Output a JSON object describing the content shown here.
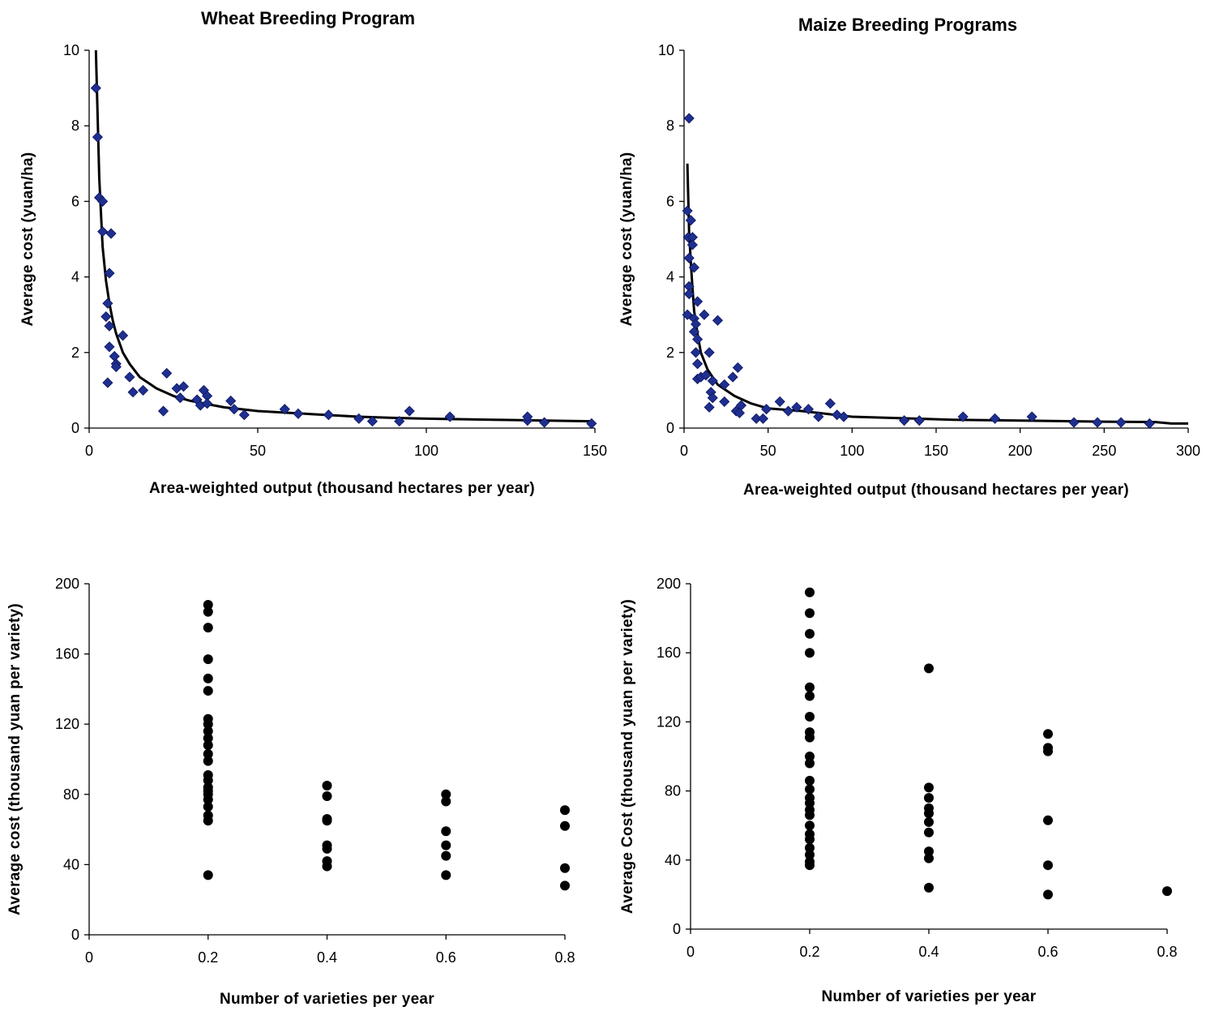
{
  "chart_data": [
    {
      "type": "scatter",
      "title": "Wheat Breeding Program",
      "xlabel": "Area-weighted output (thousand hectares per year)",
      "ylabel": "Average cost (yuan/ha)",
      "xlim": [
        0,
        150
      ],
      "ylim": [
        0,
        10
      ],
      "xticks": [
        0,
        50,
        100,
        150
      ],
      "yticks": [
        0,
        2,
        4,
        6,
        8,
        10
      ],
      "grid": false,
      "legend": "none",
      "marker": "diamond",
      "marker_color": "#1f2f8f",
      "series": [
        {
          "values": [
            [
              2,
              9.0
            ],
            [
              2.5,
              7.7
            ],
            [
              3,
              6.1
            ],
            [
              4,
              6.0
            ],
            [
              4,
              5.2
            ],
            [
              6.5,
              5.15
            ],
            [
              6,
              4.1
            ],
            [
              5,
              2.95
            ],
            [
              5.5,
              3.3
            ],
            [
              6,
              2.7
            ],
            [
              6,
              2.15
            ],
            [
              7.5,
              1.9
            ],
            [
              8,
              1.7
            ],
            [
              8,
              1.62
            ],
            [
              5.5,
              1.2
            ],
            [
              10,
              2.45
            ],
            [
              12,
              1.35
            ],
            [
              13,
              0.95
            ],
            [
              16,
              1.0
            ],
            [
              22,
              0.45
            ],
            [
              23,
              1.45
            ],
            [
              26,
              1.05
            ],
            [
              27,
              0.8
            ],
            [
              28,
              1.1
            ],
            [
              32,
              0.75
            ],
            [
              33,
              0.6
            ],
            [
              34,
              1.0
            ],
            [
              35,
              0.85
            ],
            [
              35,
              0.65
            ],
            [
              42,
              0.72
            ],
            [
              43,
              0.5
            ],
            [
              46,
              0.35
            ],
            [
              58,
              0.5
            ],
            [
              62,
              0.38
            ],
            [
              71,
              0.35
            ],
            [
              80,
              0.25
            ],
            [
              84,
              0.18
            ],
            [
              92,
              0.18
            ],
            [
              95,
              0.45
            ],
            [
              107,
              0.3
            ],
            [
              130,
              0.2
            ],
            [
              130,
              0.3
            ],
            [
              135,
              0.15
            ],
            [
              149,
              0.12
            ]
          ]
        }
      ],
      "trendline": [
        [
          2,
          10.0
        ],
        [
          3,
          6.6
        ],
        [
          4,
          4.8
        ],
        [
          5,
          3.9
        ],
        [
          6,
          3.3
        ],
        [
          7,
          2.85
        ],
        [
          8,
          2.5
        ],
        [
          10,
          2.0
        ],
        [
          12,
          1.7
        ],
        [
          15,
          1.35
        ],
        [
          20,
          1.05
        ],
        [
          25,
          0.85
        ],
        [
          30,
          0.72
        ],
        [
          40,
          0.55
        ],
        [
          50,
          0.45
        ],
        [
          60,
          0.4
        ],
        [
          70,
          0.35
        ],
        [
          80,
          0.3
        ],
        [
          90,
          0.27
        ],
        [
          100,
          0.25
        ],
        [
          120,
          0.22
        ],
        [
          149,
          0.18
        ]
      ]
    },
    {
      "type": "scatter",
      "title": "Maize Breeding Programs",
      "xlabel": "Area-weighted output (thousand hectares per year)",
      "ylabel": "Average cost (yuan/ha)",
      "xlim": [
        0,
        300
      ],
      "ylim": [
        0,
        10
      ],
      "xticks": [
        0,
        50,
        100,
        150,
        200,
        250,
        300
      ],
      "yticks": [
        0,
        2,
        4,
        6,
        8,
        10
      ],
      "grid": false,
      "legend": "none",
      "marker": "diamond",
      "marker_color": "#1f2f8f",
      "series": [
        {
          "values": [
            [
              3,
              8.2
            ],
            [
              2,
              5.75
            ],
            [
              4,
              5.5
            ],
            [
              2.5,
              5.05
            ],
            [
              5,
              5.05
            ],
            [
              3,
              4.5
            ],
            [
              5,
              4.85
            ],
            [
              6,
              4.25
            ],
            [
              3,
              3.75
            ],
            [
              3,
              3.55
            ],
            [
              2,
              3.0
            ],
            [
              8,
              3.35
            ],
            [
              6,
              2.9
            ],
            [
              7,
              2.75
            ],
            [
              6,
              2.55
            ],
            [
              8,
              2.35
            ],
            [
              7,
              2.0
            ],
            [
              8,
              1.7
            ],
            [
              12,
              3.0
            ],
            [
              20,
              2.85
            ],
            [
              15,
              2.0
            ],
            [
              8,
              1.3
            ],
            [
              10,
              1.35
            ],
            [
              13,
              1.4
            ],
            [
              17,
              1.25
            ],
            [
              16,
              0.95
            ],
            [
              17,
              0.8
            ],
            [
              15,
              0.55
            ],
            [
              24,
              1.15
            ],
            [
              29,
              1.35
            ],
            [
              32,
              1.6
            ],
            [
              24,
              0.7
            ],
            [
              31,
              0.45
            ],
            [
              33,
              0.4
            ],
            [
              34,
              0.6
            ],
            [
              43,
              0.25
            ],
            [
              47,
              0.25
            ],
            [
              49,
              0.5
            ],
            [
              57,
              0.7
            ],
            [
              62,
              0.45
            ],
            [
              67,
              0.55
            ],
            [
              74,
              0.5
            ],
            [
              80,
              0.3
            ],
            [
              87,
              0.65
            ],
            [
              91,
              0.35
            ],
            [
              95,
              0.3
            ],
            [
              131,
              0.2
            ],
            [
              140,
              0.2
            ],
            [
              166,
              0.3
            ],
            [
              185,
              0.25
            ],
            [
              207,
              0.3
            ],
            [
              232,
              0.15
            ],
            [
              246,
              0.15
            ],
            [
              260,
              0.15
            ],
            [
              277,
              0.12
            ]
          ]
        }
      ],
      "trendline": [
        [
          2,
          7.0
        ],
        [
          3,
          5.2
        ],
        [
          4,
          4.4
        ],
        [
          5,
          3.7
        ],
        [
          6,
          3.1
        ],
        [
          8,
          2.5
        ],
        [
          10,
          2.0
        ],
        [
          14,
          1.55
        ],
        [
          20,
          1.15
        ],
        [
          30,
          0.85
        ],
        [
          40,
          0.65
        ],
        [
          50,
          0.52
        ],
        [
          70,
          0.45
        ],
        [
          90,
          0.35
        ],
        [
          100,
          0.3
        ],
        [
          130,
          0.26
        ],
        [
          160,
          0.22
        ],
        [
          200,
          0.2
        ],
        [
          250,
          0.17
        ],
        [
          280,
          0.16
        ],
        [
          290,
          0.12
        ],
        [
          300,
          0.12
        ]
      ]
    },
    {
      "type": "scatter",
      "title": "",
      "xlabel": "Number of varieties per year",
      "ylabel": "Average cost (thousand yuan per variety)",
      "xlim": [
        0,
        0.8
      ],
      "ylim": [
        0,
        200
      ],
      "xticks": [
        0,
        0.2,
        0.4,
        0.6,
        0.8
      ],
      "yticks": [
        0,
        40,
        80,
        120,
        160,
        200
      ],
      "grid": false,
      "legend": "none",
      "marker": "circle",
      "marker_color": "#000000",
      "series": [
        {
          "values": [
            [
              0.2,
              188
            ],
            [
              0.2,
              184
            ],
            [
              0.2,
              175
            ],
            [
              0.2,
              157
            ],
            [
              0.2,
              146
            ],
            [
              0.2,
              139
            ],
            [
              0.2,
              123
            ],
            [
              0.2,
              120
            ],
            [
              0.2,
              116
            ],
            [
              0.2,
              112
            ],
            [
              0.2,
              108
            ],
            [
              0.2,
              103
            ],
            [
              0.2,
              99
            ],
            [
              0.2,
              91
            ],
            [
              0.2,
              88
            ],
            [
              0.2,
              84
            ],
            [
              0.2,
              82
            ],
            [
              0.2,
              80
            ],
            [
              0.2,
              77
            ],
            [
              0.2,
              73
            ],
            [
              0.2,
              68
            ],
            [
              0.2,
              65
            ],
            [
              0.2,
              34
            ],
            [
              0.4,
              85
            ],
            [
              0.4,
              79
            ],
            [
              0.4,
              66
            ],
            [
              0.4,
              65
            ],
            [
              0.4,
              51
            ],
            [
              0.4,
              49
            ],
            [
              0.4,
              42
            ],
            [
              0.4,
              39
            ],
            [
              0.6,
              80
            ],
            [
              0.6,
              76
            ],
            [
              0.6,
              59
            ],
            [
              0.6,
              51
            ],
            [
              0.6,
              45
            ],
            [
              0.6,
              34
            ],
            [
              0.8,
              71
            ],
            [
              0.8,
              62
            ],
            [
              0.8,
              38
            ],
            [
              0.8,
              28
            ]
          ]
        }
      ]
    },
    {
      "type": "scatter",
      "title": "",
      "xlabel": "Number of varieties per year",
      "ylabel": "Average Cost (thousand yuan per variety)",
      "xlim": [
        0,
        0.8
      ],
      "ylim": [
        0,
        200
      ],
      "xticks": [
        0,
        0.2,
        0.4,
        0.6,
        0.8
      ],
      "yticks": [
        0,
        40,
        80,
        120,
        160,
        200
      ],
      "grid": false,
      "legend": "none",
      "marker": "circle",
      "marker_color": "#000000",
      "series": [
        {
          "values": [
            [
              0.2,
              195
            ],
            [
              0.2,
              183
            ],
            [
              0.2,
              171
            ],
            [
              0.2,
              160
            ],
            [
              0.2,
              140
            ],
            [
              0.2,
              135
            ],
            [
              0.2,
              123
            ],
            [
              0.2,
              114
            ],
            [
              0.2,
              111
            ],
            [
              0.2,
              100
            ],
            [
              0.2,
              96
            ],
            [
              0.2,
              86
            ],
            [
              0.2,
              81
            ],
            [
              0.2,
              76
            ],
            [
              0.2,
              73
            ],
            [
              0.2,
              69
            ],
            [
              0.2,
              66
            ],
            [
              0.2,
              60
            ],
            [
              0.2,
              55
            ],
            [
              0.2,
              52
            ],
            [
              0.2,
              47
            ],
            [
              0.2,
              43
            ],
            [
              0.2,
              39
            ],
            [
              0.2,
              37
            ],
            [
              0.4,
              151
            ],
            [
              0.4,
              82
            ],
            [
              0.4,
              76
            ],
            [
              0.4,
              70
            ],
            [
              0.4,
              67
            ],
            [
              0.4,
              62
            ],
            [
              0.4,
              56
            ],
            [
              0.4,
              45
            ],
            [
              0.4,
              41
            ],
            [
              0.4,
              24
            ],
            [
              0.6,
              113
            ],
            [
              0.6,
              105
            ],
            [
              0.6,
              103
            ],
            [
              0.6,
              63
            ],
            [
              0.6,
              37
            ],
            [
              0.6,
              20
            ],
            [
              0.8,
              22
            ]
          ]
        }
      ]
    }
  ]
}
